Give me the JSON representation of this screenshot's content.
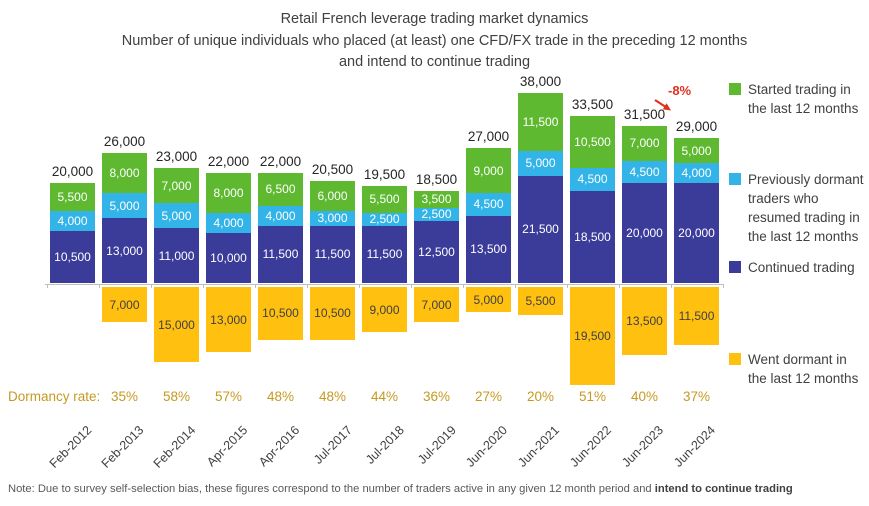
{
  "header": {
    "title": "Retail French leverage trading market dynamics",
    "subtitle_line1": "Number of unique individuals who placed (at least) one CFD/FX trade in the preceding 12 months",
    "subtitle_line2": "and intend to continue trading"
  },
  "chart_data": {
    "type": "bar",
    "stacked": true,
    "title": "Retail French leverage trading market dynamics",
    "subtitle": "Number of unique individuals who placed (at least) one CFD/FX trade in the preceding 12 months and intend to continue trading",
    "categories": [
      "Feb-2012",
      "Feb-2013",
      "Feb-2014",
      "Apr-2015",
      "Apr-2016",
      "Jul-2017",
      "Jul-2018",
      "Jul-2019",
      "Jun-2020",
      "Jun-2021",
      "Jun-2022",
      "Jun-2023",
      "Jun-2024"
    ],
    "series": [
      {
        "key": "continued",
        "name": "Continued trading",
        "color": "#3B3B99",
        "values": [
          10500,
          13000,
          11000,
          10000,
          11500,
          11500,
          11500,
          12500,
          13500,
          21500,
          18500,
          20000,
          20000
        ]
      },
      {
        "key": "resumed",
        "name": "Previously dormant traders who resumed trading in the last 12 months",
        "color": "#33B4E8",
        "values": [
          4000,
          5000,
          5000,
          4000,
          4000,
          3000,
          2500,
          2500,
          4500,
          5000,
          4500,
          4500,
          4000
        ]
      },
      {
        "key": "started",
        "name": "Started trading in the last 12 months",
        "color": "#5EB931",
        "values": [
          5500,
          8000,
          7000,
          8000,
          6500,
          6000,
          5500,
          3500,
          9000,
          11500,
          10500,
          7000,
          5000
        ]
      },
      {
        "key": "dormant",
        "name": "Went dormant in the last 12 months",
        "color": "#FFC010",
        "below_axis": true,
        "values": [
          null,
          7000,
          15000,
          13000,
          10500,
          10500,
          9000,
          7000,
          5000,
          5500,
          19500,
          13500,
          11500
        ]
      }
    ],
    "totals": [
      20000,
      26000,
      23000,
      22000,
      22000,
      20500,
      19500,
      18500,
      27000,
      38000,
      33500,
      31500,
      29000
    ],
    "dormancy_rates": [
      null,
      "35%",
      "58%",
      "57%",
      "48%",
      "48%",
      "44%",
      "36%",
      "27%",
      "20%",
      "51%",
      "40%",
      "37%"
    ],
    "legend": {
      "position": "right",
      "items": [
        {
          "key": "started",
          "label": "Started trading in the last 12 months",
          "color": "#5EB931"
        },
        {
          "key": "resumed",
          "label": "Previously dormant traders who resumed trading in the last 12 months",
          "color": "#33B4E8"
        },
        {
          "key": "continued",
          "label": "Continued trading",
          "color": "#3B3B99"
        },
        {
          "key": "dormant",
          "label": "Went dormant in the last 12 months",
          "color": "#FFC010"
        }
      ]
    },
    "annotation": {
      "text": "-8%",
      "color": "#E0301E",
      "target_category": "Jun-2024"
    },
    "axis": {
      "baseline_color": "#BFBFBF",
      "grid": false
    }
  },
  "dormancy": {
    "label": "Dormancy rate:",
    "color": "#C49A22"
  },
  "note": {
    "prefix": "Note: Due to survey self-selection bias, these figures correspond to the number of traders active in any given 12 month period and ",
    "bold": "intend to continue trading"
  }
}
